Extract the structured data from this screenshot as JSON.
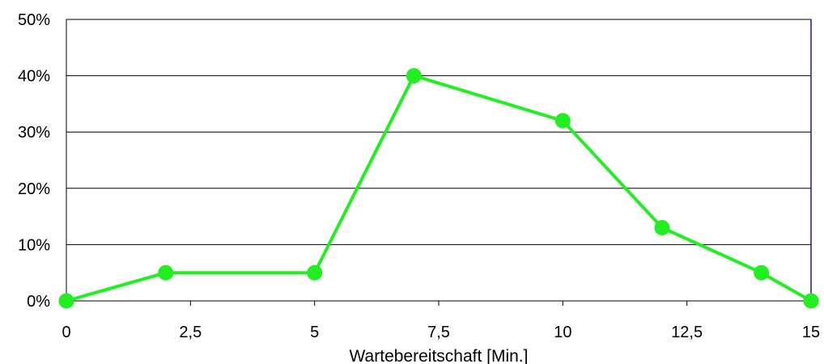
{
  "chart_data": {
    "type": "line",
    "title": "",
    "xlabel": "Wartebereitschaft [Min.]",
    "ylabel": "",
    "xlim": [
      0,
      15
    ],
    "ylim": [
      0,
      50
    ],
    "x_ticks": [
      0,
      2.5,
      5,
      7.5,
      10,
      12.5,
      15
    ],
    "x_tick_labels": [
      "0",
      "2,5",
      "5",
      "7,5",
      "10",
      "12,5",
      "15"
    ],
    "y_ticks": [
      0,
      10,
      20,
      30,
      40,
      50
    ],
    "y_tick_labels": [
      "0%",
      "10%",
      "20%",
      "30%",
      "40%",
      "50%"
    ],
    "grid": {
      "horizontal": true,
      "vertical": false
    },
    "legend": "none",
    "series": [
      {
        "color": "#22ee22",
        "x": [
          0,
          2,
          5,
          7,
          10,
          12,
          14,
          15
        ],
        "y": [
          0,
          5,
          5,
          40,
          32,
          13,
          5,
          0
        ]
      }
    ]
  }
}
